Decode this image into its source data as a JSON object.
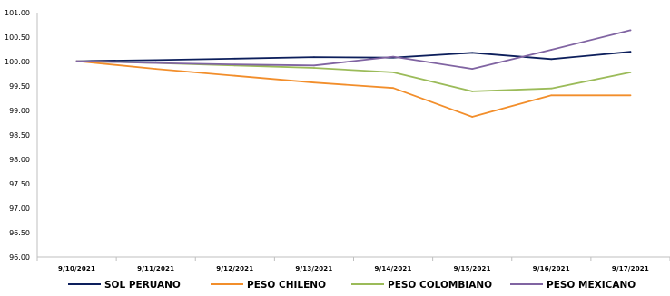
{
  "chart_data": {
    "type": "line",
    "title": "",
    "xlabel": "",
    "ylabel": "",
    "ylim": [
      96.0,
      101.0
    ],
    "y_ticks": [
      "96.00",
      "96.50",
      "97.00",
      "97.50",
      "98.00",
      "98.50",
      "99.00",
      "99.50",
      "100.00",
      "100.50",
      "101.00"
    ],
    "categories": [
      "9/10/2021",
      "9/11/2021",
      "9/12/2021",
      "9/13/2021",
      "9/14/2021",
      "9/15/2021",
      "9/16/2021",
      "9/17/2021"
    ],
    "grid": false,
    "legend_position": "bottom",
    "series": [
      {
        "name": "SOL PERUANO",
        "color": "#0d1f5c",
        "values": [
          100.01,
          100.03,
          100.06,
          100.09,
          100.08,
          100.18,
          100.05,
          100.2
        ]
      },
      {
        "name": "PESO CHILENO",
        "color": "#f28e2b",
        "values": [
          100.01,
          99.85,
          99.71,
          99.57,
          99.46,
          98.87,
          99.31,
          99.31
        ]
      },
      {
        "name": "PESO COLOMBIANO",
        "color": "#9bbb59",
        "values": [
          100.01,
          99.97,
          99.92,
          99.87,
          99.78,
          99.39,
          99.45,
          99.78
        ]
      },
      {
        "name": "PESO MEXICANO",
        "color": "#8064a2",
        "values": [
          100.01,
          99.97,
          99.94,
          99.92,
          100.1,
          99.85,
          100.24,
          100.64
        ]
      }
    ]
  }
}
